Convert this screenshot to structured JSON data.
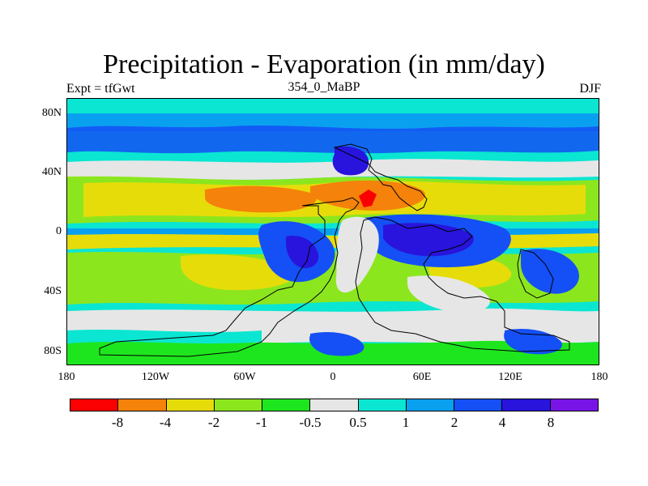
{
  "title": "Precipitation - Evaporation (in mm/day)",
  "subtitle_left": "Expt = tfGwt",
  "subtitle_center": "354_0_MaBP",
  "subtitle_right": "DJF",
  "lat_labels": [
    "80N",
    "40N",
    "0",
    "40S",
    "80S"
  ],
  "lon_labels": [
    "180",
    "120W",
    "60W",
    "0",
    "60E",
    "120E",
    "180"
  ],
  "colorbar": {
    "labels": [
      "-8",
      "-4",
      "-2",
      "-1",
      "-0.5",
      "0.5",
      "1",
      "2",
      "4",
      "8"
    ],
    "colors": [
      "#fa0000",
      "#f5820a",
      "#e6dc0a",
      "#8ce61e",
      "#1ee61e",
      "#e6e6e6",
      "#0ae6d2",
      "#0aa0f0",
      "#1450f5",
      "#2814dc",
      "#7814e6"
    ]
  },
  "background_color": "#0ae6d2"
}
